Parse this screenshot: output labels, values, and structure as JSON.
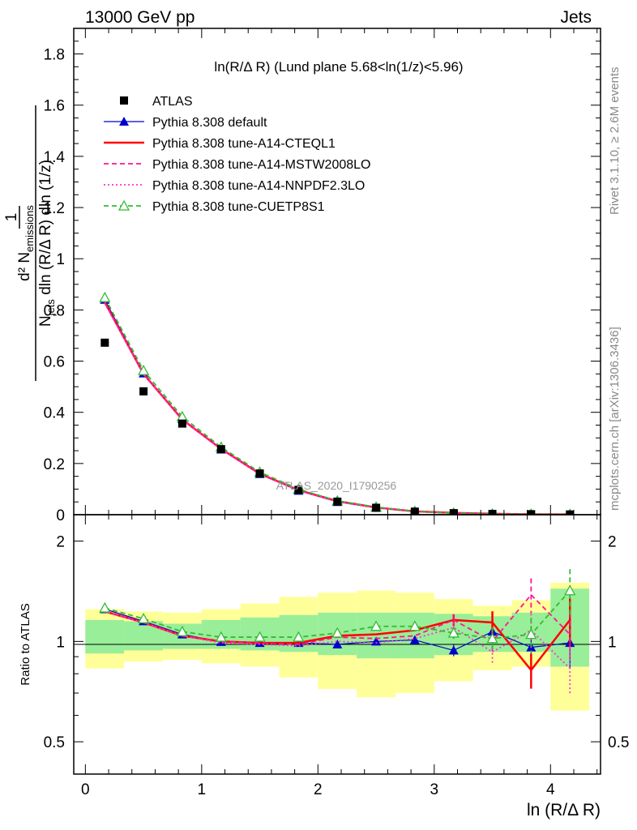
{
  "header": {
    "left": "13000 GeV pp",
    "right": "Jets"
  },
  "side_labels": {
    "rivet": "Rivet 3.1.10, ≥ 2.6M events",
    "mcplots": "mcplots.cern.ch [arXiv:1306.3436]"
  },
  "watermark": "ATLAS_2020_I1790256",
  "chart_data": {
    "type": "line",
    "title": "ln(R/Δ R) (Lund plane 5.68<ln(1/z)<5.96)",
    "xlabel": "ln (R/Δ R)",
    "ylabel": "1/N_jets d²N_emissions / dln (R/Δ R) dln (1/z)",
    "ratio_ylabel": "Ratio to ATLAS",
    "xlim": [
      -0.1,
      4.43
    ],
    "ylim": [
      0,
      1.9
    ],
    "ratio_ylim": [
      0.4,
      2.4
    ],
    "grid": false,
    "legend_position": "top-left",
    "x_ticks": [
      "0",
      "1",
      "2",
      "3",
      "4"
    ],
    "y_ticks": [
      "0",
      "0.2",
      "0.4",
      "0.6",
      "0.8",
      "1",
      "1.2",
      "1.4",
      "1.6",
      "1.8"
    ],
    "ratio_ticks": [
      "0.5",
      "1",
      "2"
    ],
    "bin_edges": [
      0,
      0.333,
      0.667,
      1.0,
      1.333,
      1.667,
      2.0,
      2.333,
      2.667,
      3.0,
      3.333,
      3.667,
      4.0,
      4.333
    ],
    "x": [
      0.167,
      0.5,
      0.833,
      1.167,
      1.5,
      1.833,
      2.167,
      2.5,
      2.833,
      3.167,
      3.5,
      3.833,
      4.167
    ],
    "atlas": [
      0.672,
      0.482,
      0.356,
      0.256,
      0.161,
      0.097,
      0.051,
      0.027,
      0.012,
      0.006,
      0.003,
      0.002,
      0.001
    ],
    "band_green": [
      [
        0.92,
        1.16
      ],
      [
        0.94,
        1.15
      ],
      [
        0.95,
        1.13
      ],
      [
        0.95,
        1.16
      ],
      [
        0.94,
        1.18
      ],
      [
        0.93,
        1.2
      ],
      [
        0.91,
        1.22
      ],
      [
        0.89,
        1.22
      ],
      [
        0.89,
        1.22
      ],
      [
        0.91,
        1.21
      ],
      [
        0.93,
        1.19
      ],
      [
        0.93,
        1.22
      ],
      [
        0.84,
        1.44
      ]
    ],
    "band_yellow": [
      [
        0.83,
        1.25
      ],
      [
        0.87,
        1.23
      ],
      [
        0.88,
        1.22
      ],
      [
        0.86,
        1.25
      ],
      [
        0.84,
        1.3
      ],
      [
        0.78,
        1.36
      ],
      [
        0.72,
        1.4
      ],
      [
        0.68,
        1.42
      ],
      [
        0.7,
        1.4
      ],
      [
        0.76,
        1.34
      ],
      [
        0.82,
        1.28
      ],
      [
        0.84,
        1.33
      ],
      [
        0.62,
        1.5
      ]
    ],
    "series": [
      {
        "name": "ATLAS",
        "color": "#000000",
        "marker": "square",
        "line": "none",
        "ratio": [
          1,
          1,
          1,
          1,
          1,
          1,
          1,
          1,
          1,
          1,
          1,
          1,
          1
        ]
      },
      {
        "name": "Pythia 8.308 default",
        "color": "#0000cc",
        "marker": "triangle",
        "line": "solid",
        "values": [
          0.84,
          0.552,
          0.374,
          0.255,
          0.159,
          0.094,
          0.05,
          0.027,
          0.012,
          0.0056,
          0.0033,
          0.0019,
          0.001
        ],
        "ratio": [
          1.25,
          1.15,
          1.05,
          0.997,
          0.99,
          0.99,
          0.98,
          1.0,
          1.01,
          0.94,
          1.07,
          0.96,
          0.99
        ]
      },
      {
        "name": "Pythia 8.308 tune-A14-CTEQL1",
        "color": "#ff0000",
        "marker": "none",
        "line": "solid-thick",
        "values": [
          0.83,
          0.55,
          0.372,
          0.257,
          0.16,
          0.096,
          0.053,
          0.028,
          0.013,
          0.007,
          0.0034,
          0.0016,
          0.0012
        ],
        "ratio": [
          1.23,
          1.14,
          1.04,
          1.0,
          0.99,
          0.99,
          1.04,
          1.05,
          1.08,
          1.16,
          1.14,
          0.82,
          1.16
        ]
      },
      {
        "name": "Pythia 8.308 tune-A14-MSTW2008LO",
        "color": "#ff1493",
        "marker": "none",
        "line": "dashed",
        "values": [
          0.83,
          0.55,
          0.372,
          0.257,
          0.159,
          0.095,
          0.052,
          0.028,
          0.013,
          0.0068,
          0.003,
          0.0027,
          0.0011
        ],
        "ratio": [
          1.23,
          1.14,
          1.04,
          1.0,
          0.99,
          0.98,
          1.03,
          1.02,
          1.04,
          1.16,
          1.0,
          1.38,
          1.05
        ]
      },
      {
        "name": "Pythia 8.308 tune-A14-NNPDF2.3LO",
        "color": "#ff33cc",
        "marker": "none",
        "line": "dotted",
        "values": [
          0.825,
          0.548,
          0.37,
          0.255,
          0.158,
          0.094,
          0.051,
          0.027,
          0.012,
          0.0066,
          0.0028,
          0.0022,
          0.0008
        ],
        "ratio": [
          1.23,
          1.14,
          1.04,
          0.99,
          0.98,
          0.97,
          1.0,
          0.99,
          1.02,
          1.1,
          0.93,
          1.08,
          0.83
        ]
      },
      {
        "name": "Pythia 8.308 tune-CUETP8S1",
        "color": "#33bb33",
        "marker": "open-triangle",
        "line": "dashed",
        "values": [
          0.848,
          0.563,
          0.383,
          0.264,
          0.166,
          0.1,
          0.054,
          0.03,
          0.013,
          0.0063,
          0.003,
          0.0021,
          0.0014
        ],
        "ratio": [
          1.26,
          1.17,
          1.07,
          1.03,
          1.03,
          1.03,
          1.06,
          1.11,
          1.11,
          1.06,
          1.02,
          1.05,
          1.42
        ]
      }
    ]
  }
}
